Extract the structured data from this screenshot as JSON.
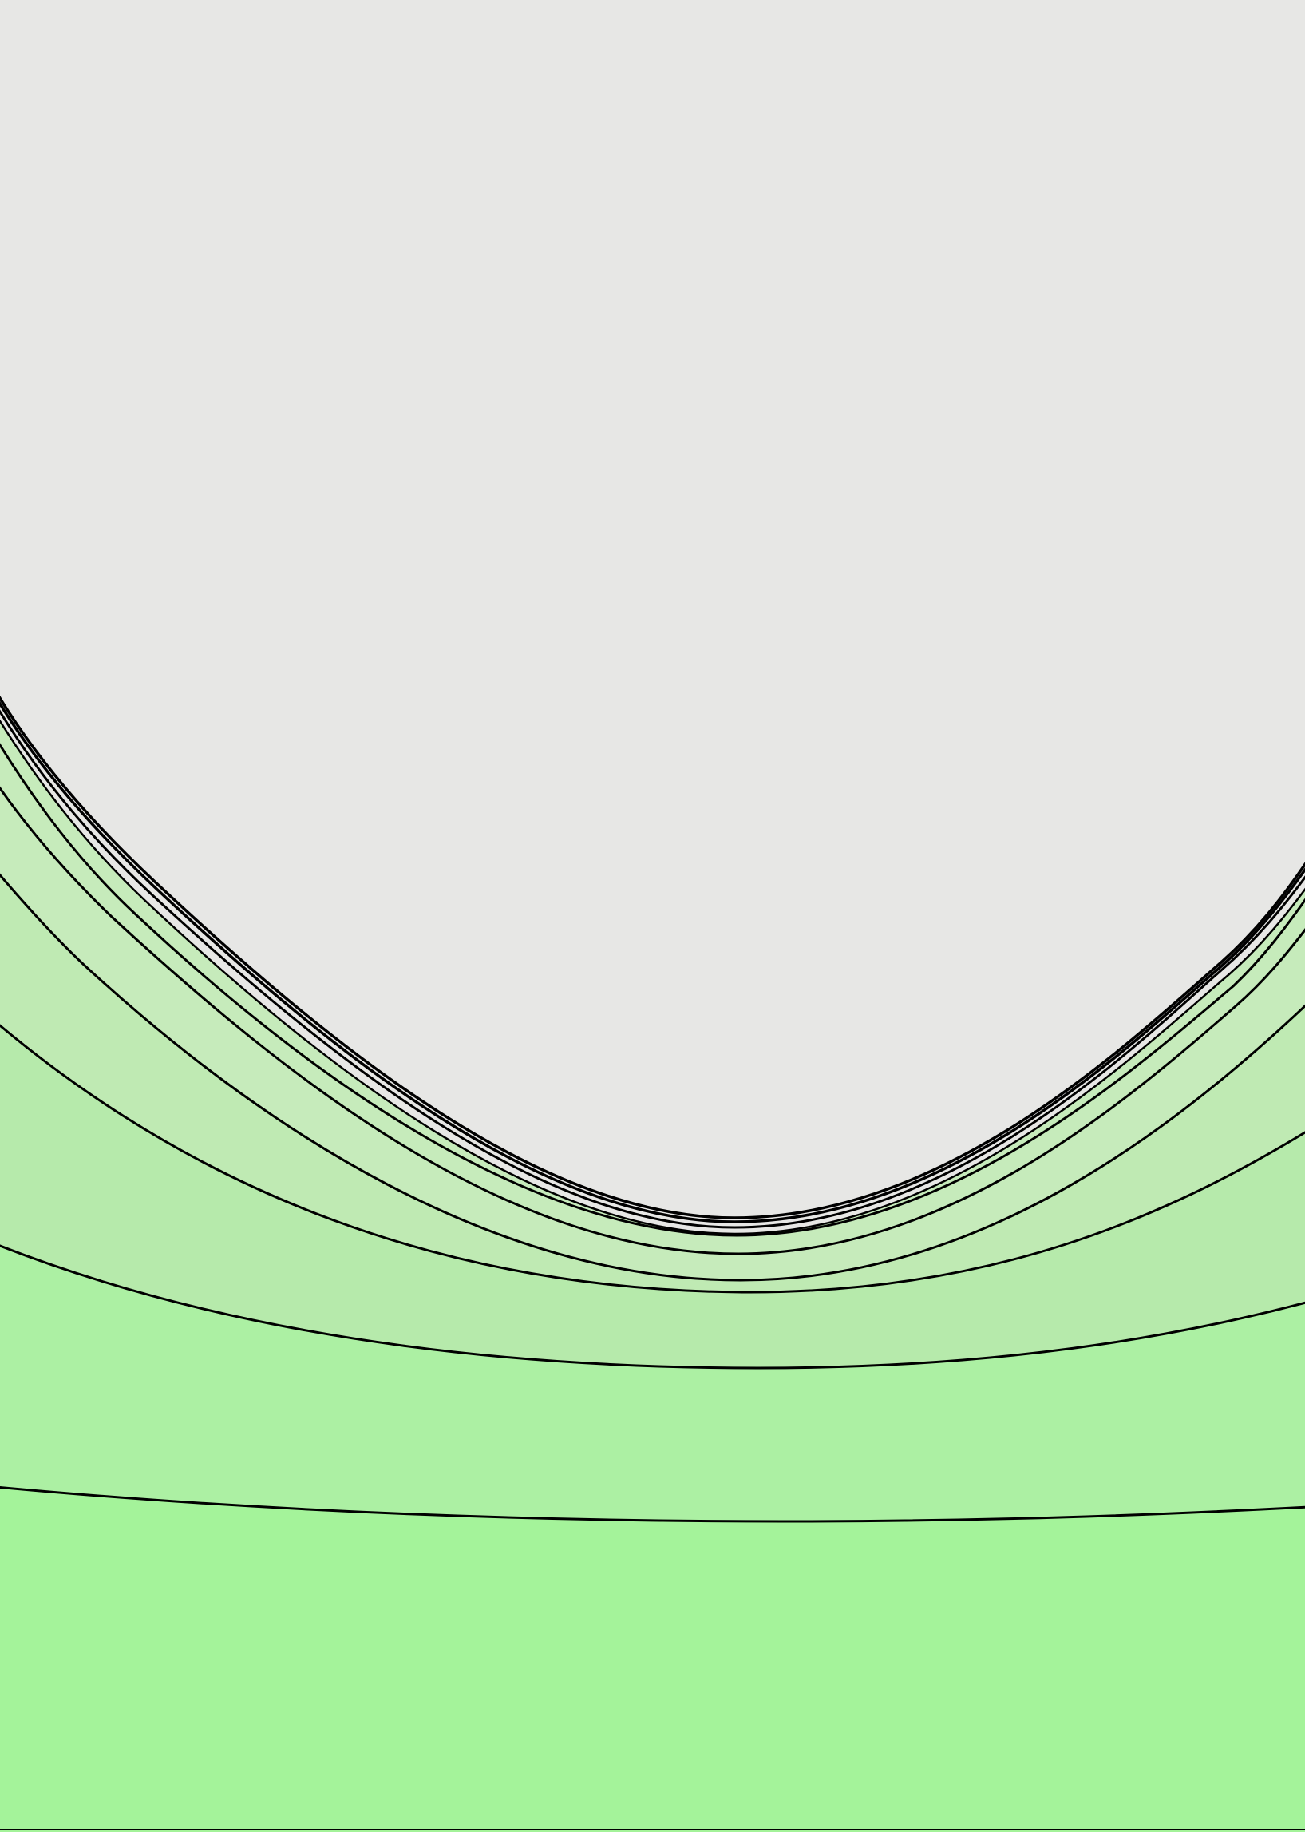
{
  "colors": {
    "background": "#e7e7e5",
    "line": "#000000",
    "band_fills": [
      "#c6ebbb",
      "#bfeab3",
      "#b6eaab",
      "#acf0a3",
      "#a4f39a"
    ]
  },
  "contour_count": 10
}
